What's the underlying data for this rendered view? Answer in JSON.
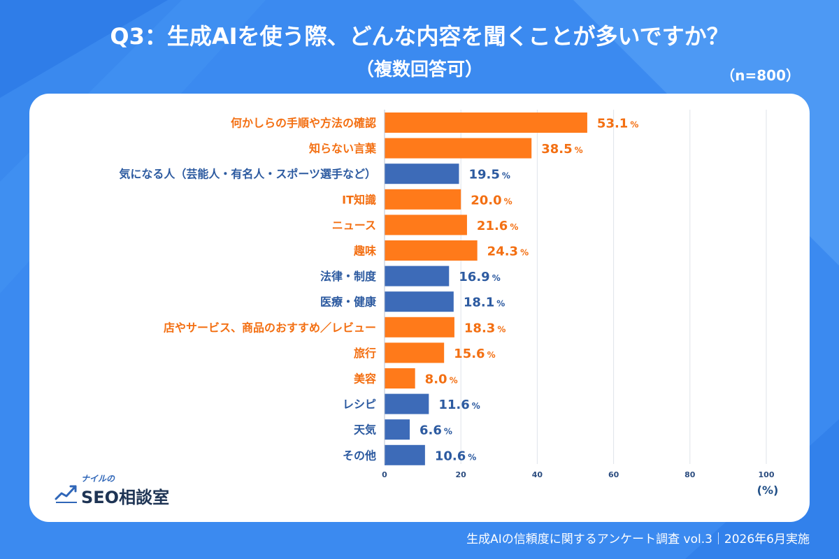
{
  "header": {
    "title": "Q3：生成AIを使う際、どんな内容を聞くことが多いですか？",
    "subtitle": "（複数回答可）",
    "sample": "（n=800）"
  },
  "colors": {
    "background": "#3b8af0",
    "orange": "#ff7a1a",
    "blue": "#3d6bb8",
    "label_orange": "#f36f12",
    "label_blue": "#2c5aa0"
  },
  "logo": {
    "small_text": "ナイルの",
    "main_text": "SEO相談室",
    "icon": "chart-line-icon"
  },
  "footer": {
    "source": "生成AIの信頼度に関するアンケート調査 vol.3｜2026年6月実施"
  },
  "chart_data": {
    "type": "bar",
    "orientation": "horizontal",
    "categories": [
      "何かしらの手順や方法の確認",
      "知らない言葉",
      "気になる人（芸能人・有名人・スポーツ選手など）",
      "IT知識",
      "ニュース",
      "趣味",
      "法律・制度",
      "医療・健康",
      "店やサービス、商品のおすすめ／レビュー",
      "旅行",
      "美容",
      "レシピ",
      "天気",
      "その他"
    ],
    "values": [
      53.1,
      38.5,
      19.5,
      20.0,
      21.6,
      24.3,
      16.9,
      18.1,
      18.3,
      15.6,
      8.0,
      11.6,
      6.6,
      10.6
    ],
    "value_labels": [
      "53.1",
      "38.5",
      "19.5",
      "20.0",
      "21.6",
      "24.3",
      "16.9",
      "18.1",
      "18.3",
      "15.6",
      "8.0",
      "11.6",
      "6.6",
      "10.6"
    ],
    "value_suffix": "%",
    "colors": [
      "orange",
      "orange",
      "blue",
      "orange",
      "orange",
      "orange",
      "blue",
      "blue",
      "orange",
      "orange",
      "orange",
      "blue",
      "blue",
      "blue"
    ],
    "xlim": [
      0,
      100
    ],
    "xticks": [
      0,
      20,
      40,
      60,
      80,
      100
    ],
    "xtick_labels": [
      "0",
      "20",
      "40",
      "60",
      "80",
      "100"
    ],
    "xlabel": "(%)",
    "grid": true
  }
}
